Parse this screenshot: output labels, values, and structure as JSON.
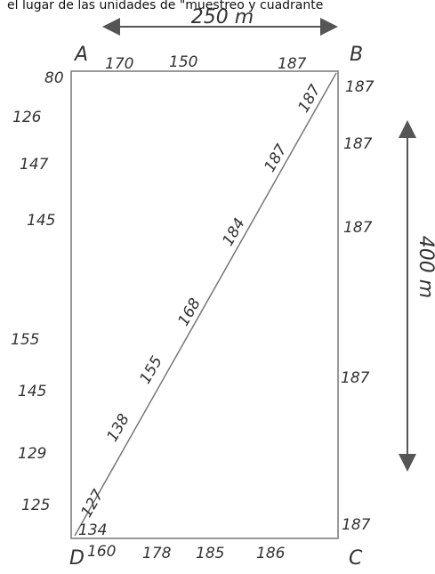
{
  "caption": "el lugar de las unidades de \"muestreo y cuadrante",
  "dimensions": {
    "width": "250 m",
    "height": "400 m"
  },
  "corners": {
    "a": "A",
    "b": "B",
    "c": "C",
    "d": "D"
  },
  "edges": {
    "top": [
      80,
      170,
      150,
      187
    ],
    "right": [
      187,
      187,
      187,
      187,
      187
    ],
    "left": [
      126,
      147,
      145,
      155,
      145,
      129,
      125
    ],
    "bottom": [
      160,
      178,
      185,
      186
    ],
    "diagonal": [
      134,
      127,
      138,
      155,
      168,
      184,
      187,
      187
    ]
  }
}
